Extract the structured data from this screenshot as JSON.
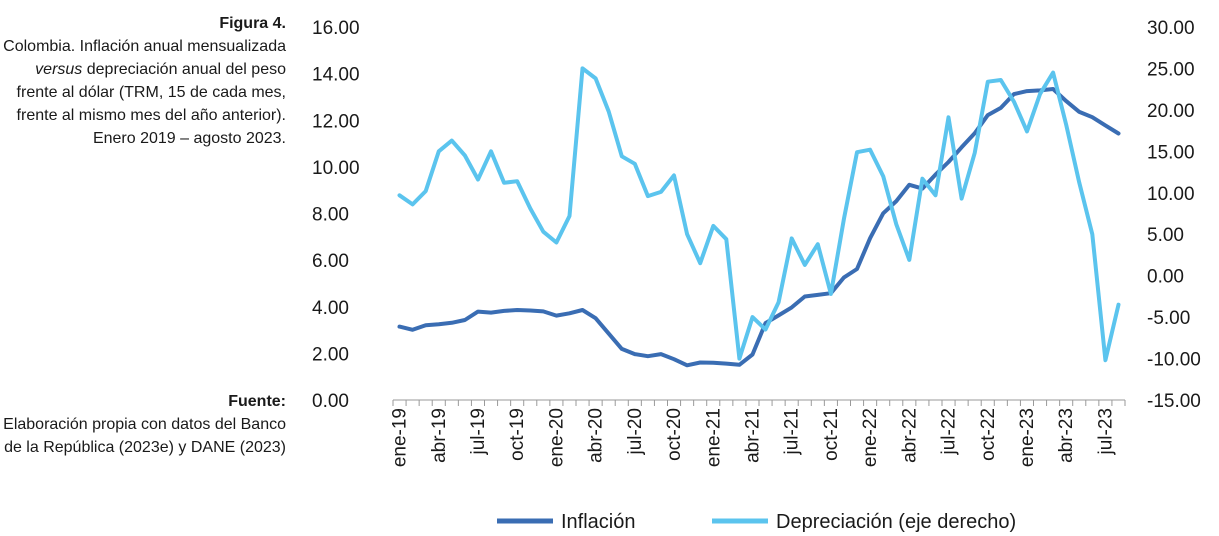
{
  "figure": {
    "label": "Figura 4.",
    "caption_pre": "Colombia. Inflación anual mensualizada ",
    "caption_italic": "versus",
    "caption_post": " depreciación anual del peso frente al dólar (TRM, 15 de cada mes, frente al mismo mes del año anterior). Enero 2019 – agosto 2023."
  },
  "source": {
    "label": "Fuente:",
    "text": "Elaboración propia con datos del Banco de la República (2023e) y DANE (2023)"
  },
  "colors": {
    "inflacion": "#3a6db3",
    "depreciacion": "#5bc4ee",
    "axis": "#9a9a9a"
  },
  "chart_data": {
    "type": "line",
    "categories": [
      "ene-19",
      "feb-19",
      "mar-19",
      "abr-19",
      "may-19",
      "jun-19",
      "jul-19",
      "ago-19",
      "sep-19",
      "oct-19",
      "nov-19",
      "dic-19",
      "ene-20",
      "feb-20",
      "mar-20",
      "abr-20",
      "may-20",
      "jun-20",
      "jul-20",
      "ago-20",
      "sep-20",
      "oct-20",
      "nov-20",
      "dic-20",
      "ene-21",
      "feb-21",
      "mar-21",
      "abr-21",
      "may-21",
      "jun-21",
      "jul-21",
      "ago-21",
      "sep-21",
      "oct-21",
      "nov-21",
      "dic-21",
      "ene-22",
      "feb-22",
      "mar-22",
      "abr-22",
      "may-22",
      "jun-22",
      "jul-22",
      "ago-22",
      "sep-22",
      "oct-22",
      "nov-22",
      "dic-22",
      "ene-23",
      "feb-23",
      "mar-23",
      "abr-23",
      "may-23",
      "jun-23",
      "jul-23",
      "ago-23"
    ],
    "x_tick_labels": [
      "ene-19",
      "abr-19",
      "jul-19",
      "oct-19",
      "ene-20",
      "abr-20",
      "jul-20",
      "oct-20",
      "ene-21",
      "abr-21",
      "jul-21",
      "oct-21",
      "ene-22",
      "abr-22",
      "jul-22",
      "oct-22",
      "ene-23",
      "abr-23",
      "jul-23"
    ],
    "y_left": {
      "ylim": [
        0,
        16
      ],
      "ticks": [
        "0.00",
        "2.00",
        "4.00",
        "6.00",
        "8.00",
        "10.00",
        "12.00",
        "14.00",
        "16.00"
      ]
    },
    "y_right": {
      "ylim": [
        -15,
        30
      ],
      "ticks": [
        "-15.00",
        "-10.00",
        "-5.00",
        "0.00",
        "5.00",
        "10.00",
        "15.00",
        "20.00",
        "25.00",
        "30.00"
      ]
    },
    "grid": false,
    "legend_position": "bottom",
    "series": [
      {
        "name": "Inflación",
        "axis": "left",
        "values": [
          3.15,
          3.01,
          3.21,
          3.25,
          3.31,
          3.43,
          3.79,
          3.75,
          3.82,
          3.86,
          3.84,
          3.8,
          3.62,
          3.72,
          3.86,
          3.51,
          2.85,
          2.19,
          1.97,
          1.88,
          1.97,
          1.75,
          1.49,
          1.61,
          1.6,
          1.56,
          1.51,
          1.95,
          3.3,
          3.63,
          3.97,
          4.44,
          4.51,
          4.58,
          5.26,
          5.62,
          6.94,
          8.01,
          8.53,
          9.23,
          9.07,
          9.67,
          10.21,
          10.84,
          11.44,
          12.22,
          12.53,
          13.12,
          13.25,
          13.28,
          13.34,
          12.82,
          12.36,
          12.13,
          11.78,
          11.43
        ]
      },
      {
        "name": "Depreciación (eje derecho)",
        "axis": "right",
        "values": [
          9.7,
          8.6,
          10.2,
          15.0,
          16.3,
          14.5,
          11.6,
          15.0,
          11.2,
          11.4,
          8.1,
          5.3,
          4.0,
          7.2,
          25.0,
          23.8,
          19.8,
          14.4,
          13.5,
          9.6,
          10.1,
          12.1,
          5.0,
          1.5,
          6.0,
          4.4,
          -10.0,
          -5.0,
          -6.5,
          -3.2,
          4.5,
          1.3,
          3.8,
          -2.2,
          6.9,
          14.9,
          15.2,
          12.0,
          6.2,
          1.9,
          11.7,
          9.7,
          19.1,
          9.3,
          14.8,
          23.4,
          23.6,
          21.0,
          17.4,
          21.9,
          24.5,
          18.2,
          11.2,
          5.0,
          -10.2,
          -3.5
        ]
      }
    ]
  }
}
